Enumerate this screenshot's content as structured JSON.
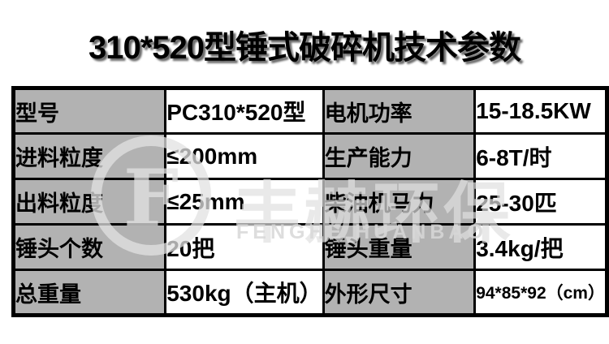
{
  "title": "310*520型锤式破碎机技术参数",
  "chart_data": {
    "type": "table",
    "title": "310*520型锤式破碎机技术参数",
    "structure": "4 columns: parameter label (gray), value (white), parameter label (gray), value (white)",
    "rows": [
      {
        "label_left": "型号",
        "value_left": "PC310*520型",
        "label_right": "电机功率",
        "value_right": "15-18.5KW"
      },
      {
        "label_left": "进料粒度",
        "value_left": "≤200mm",
        "label_right": "生产能力",
        "value_right": "6-8T/时"
      },
      {
        "label_left": "出料粒度",
        "value_left": "≤25mm",
        "label_right": "柴油机马力",
        "value_right": "25-30匹"
      },
      {
        "label_left": "锤头个数",
        "value_left": "20把",
        "label_right": "锤头重量",
        "value_right": "3.4kg/把"
      },
      {
        "label_left": "总重量",
        "value_left": "530kg（主机）",
        "label_right": "外形尺寸",
        "value_right": "94*85*92（cm）"
      }
    ]
  },
  "watermark": {
    "logo_letter": "F",
    "cn_text": "丰赫环保",
    "en_text": "FENGHE HUANBAO"
  },
  "colors": {
    "label_cell_bg": "#b2b2b2",
    "value_cell_bg": "#ffffff",
    "border": "#000000",
    "title_text": "#000000",
    "page_bg": "#ffffff"
  }
}
